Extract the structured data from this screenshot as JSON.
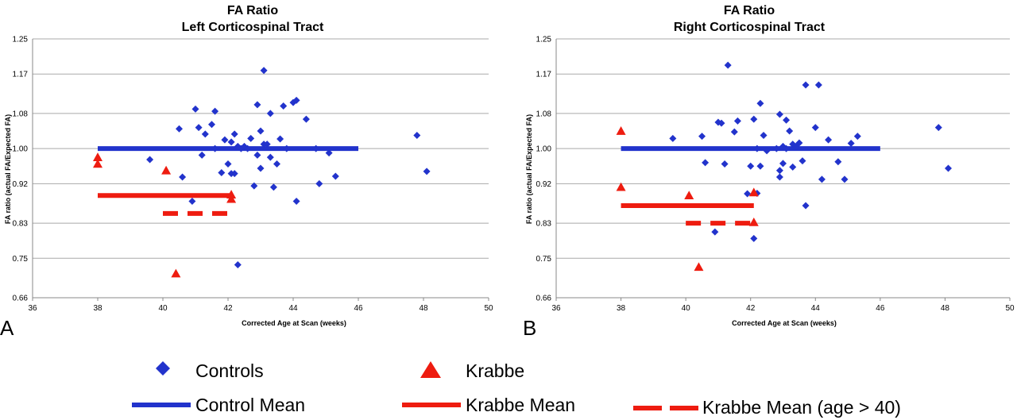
{
  "colors": {
    "controls": "#2233cc",
    "krabbe": "#ee1c10",
    "grid": "#a9a9a9",
    "axis": "#888888"
  },
  "chart_data": [
    {
      "type": "scatter",
      "panel_label": "A",
      "title": [
        "FA Ratio",
        "Left Corticospinal Tract"
      ],
      "xlabel": "Corrected Age at Scan (weeks)",
      "ylabel": "FA ratio (actual FA/Expected FA)",
      "xlim": [
        36,
        50
      ],
      "ylim": [
        0.66,
        1.25
      ],
      "xticks": [
        36,
        38,
        40,
        42,
        44,
        46,
        48,
        50
      ],
      "yticks": [
        "0.66",
        "0.75",
        "0.83",
        "0.92",
        "1.00",
        "1.08",
        "1.17",
        "1.25"
      ],
      "grid": true,
      "series": [
        {
          "name": "Controls",
          "marker": "diamond",
          "x": [
            39.6,
            40.5,
            40.6,
            40.9,
            41.0,
            41.1,
            41.2,
            41.3,
            41.5,
            41.6,
            41.6,
            41.8,
            41.9,
            42.0,
            42.1,
            42.1,
            42.2,
            42.2,
            42.3,
            42.3,
            42.4,
            42.5,
            42.6,
            42.7,
            42.8,
            42.9,
            42.9,
            43.0,
            43.0,
            43.1,
            43.1,
            43.2,
            43.3,
            43.3,
            43.4,
            43.5,
            43.6,
            43.7,
            43.8,
            44.0,
            44.1,
            44.1,
            44.4,
            44.7,
            44.8,
            45.1,
            45.3,
            47.8,
            48.1
          ],
          "y": [
            0.975,
            1.045,
            0.935,
            0.88,
            1.09,
            1.048,
            0.985,
            1.033,
            1.055,
            1.085,
            1.0,
            0.945,
            1.02,
            0.965,
            0.943,
            1.015,
            0.943,
            1.033,
            1.005,
            0.735,
            1.0,
            1.005,
            1.0,
            1.023,
            0.915,
            1.1,
            0.985,
            0.955,
            1.04,
            1.01,
            1.178,
            1.01,
            0.98,
            1.08,
            0.912,
            0.965,
            1.022,
            1.097,
            1.0,
            1.105,
            1.11,
            0.88,
            1.067,
            1.0,
            0.92,
            0.99,
            0.937,
            1.03,
            0.948
          ]
        },
        {
          "name": "Krabbe",
          "marker": "triangle",
          "x": [
            38.0,
            38.0,
            40.1,
            40.4,
            42.1,
            42.1
          ],
          "y": [
            0.98,
            0.965,
            0.95,
            0.715,
            0.895,
            0.885
          ]
        }
      ],
      "mean_lines": [
        {
          "name": "Control Mean",
          "y": 1.0,
          "x": [
            38,
            46
          ],
          "style": "solid"
        },
        {
          "name": "Krabbe Mean",
          "y": 0.893,
          "x": [
            38,
            42.1
          ],
          "style": "solid"
        },
        {
          "name": "Krabbe Mean (age > 40)",
          "y": 0.852,
          "x": [
            40,
            42
          ],
          "style": "dashed"
        }
      ]
    },
    {
      "type": "scatter",
      "panel_label": "B",
      "title": [
        "FA Ratio",
        "Right Corticospinal Tract"
      ],
      "xlabel": "Corrected Age at Scan (weeks)",
      "ylabel": "FA ratio (actual FA/Expected FA)",
      "xlim": [
        36,
        50
      ],
      "ylim": [
        0.66,
        1.25
      ],
      "xticks": [
        36,
        38,
        40,
        42,
        44,
        46,
        48,
        50
      ],
      "yticks": [
        "0.66",
        "0.75",
        "0.83",
        "0.92",
        "1.00",
        "1.08",
        "1.17",
        "1.25"
      ],
      "grid": true,
      "series": [
        {
          "name": "Controls",
          "marker": "diamond",
          "x": [
            39.6,
            40.5,
            40.6,
            40.9,
            41.0,
            41.1,
            41.2,
            41.3,
            41.5,
            41.6,
            41.9,
            42.0,
            42.1,
            42.1,
            42.2,
            42.2,
            42.3,
            42.3,
            42.4,
            42.5,
            42.8,
            42.9,
            42.9,
            42.9,
            43.0,
            43.0,
            43.1,
            43.1,
            43.2,
            43.3,
            43.3,
            43.4,
            43.5,
            43.6,
            43.7,
            43.7,
            44.0,
            44.1,
            44.2,
            44.4,
            44.7,
            44.9,
            45.1,
            45.3,
            47.8,
            48.1
          ],
          "y": [
            1.023,
            1.028,
            0.968,
            0.81,
            1.06,
            1.058,
            0.965,
            1.19,
            1.038,
            1.063,
            0.897,
            0.96,
            1.067,
            0.795,
            1.0,
            0.898,
            1.103,
            0.96,
            1.03,
            0.995,
            1.0,
            1.078,
            0.95,
            0.935,
            1.005,
            0.966,
            1.065,
            1.0,
            1.04,
            1.01,
            0.958,
            1.005,
            1.013,
            0.972,
            1.145,
            0.87,
            1.048,
            1.145,
            0.93,
            1.02,
            0.97,
            0.93,
            1.012,
            1.028,
            1.048,
            0.955
          ]
        },
        {
          "name": "Krabbe",
          "marker": "triangle",
          "x": [
            38.0,
            38.0,
            40.1,
            40.4,
            42.1,
            42.1
          ],
          "y": [
            1.04,
            0.912,
            0.893,
            0.73,
            0.9,
            0.832
          ]
        }
      ],
      "mean_lines": [
        {
          "name": "Control Mean",
          "y": 1.0,
          "x": [
            38,
            46
          ],
          "style": "solid"
        },
        {
          "name": "Krabbe Mean",
          "y": 0.87,
          "x": [
            38,
            42.1
          ],
          "style": "solid"
        },
        {
          "name": "Krabbe Mean (age > 40)",
          "y": 0.83,
          "x": [
            40,
            42
          ],
          "style": "dashed"
        }
      ]
    }
  ],
  "legend": {
    "items": [
      {
        "label": "Controls",
        "symbol": "diamond",
        "color": "#2233cc"
      },
      {
        "label": "Krabbe",
        "symbol": "triangle",
        "color": "#ee1c10"
      },
      {
        "label": "Control Mean",
        "symbol": "solid-line",
        "color": "#2233cc"
      },
      {
        "label": "Krabbe Mean",
        "symbol": "solid-line",
        "color": "#ee1c10"
      },
      {
        "label": "Krabbe Mean (age > 40)",
        "symbol": "dashed-line",
        "color": "#ee1c10"
      }
    ]
  }
}
